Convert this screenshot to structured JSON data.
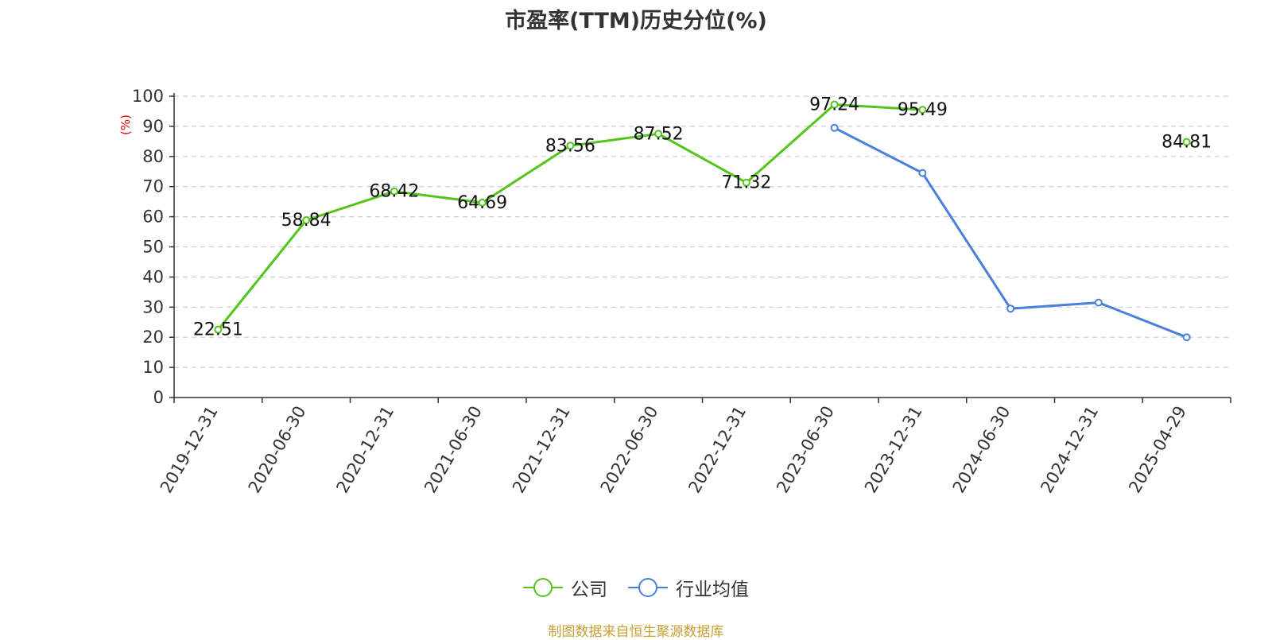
{
  "chart_data": {
    "type": "line",
    "title": "市盈率(TTM)历史分位(%)",
    "ylabel": "(%)",
    "xlabel": "",
    "ylim": [
      0,
      100
    ],
    "yticks": [
      0,
      10,
      20,
      30,
      40,
      50,
      60,
      70,
      80,
      90,
      100
    ],
    "categories": [
      "2019-12-31",
      "2020-06-30",
      "2020-12-31",
      "2021-06-30",
      "2021-12-31",
      "2022-06-30",
      "2022-12-31",
      "2023-06-30",
      "2023-12-31",
      "2024-06-30",
      "2024-12-31",
      "2025-04-29"
    ],
    "series": [
      {
        "name": "公司",
        "color": "#52c41a",
        "show_labels": true,
        "values": [
          22.51,
          58.84,
          68.42,
          64.69,
          83.56,
          87.52,
          71.32,
          97.24,
          95.49,
          null,
          null,
          84.81
        ]
      },
      {
        "name": "行业均值",
        "color": "#4a7fdc",
        "show_labels": false,
        "values": [
          null,
          null,
          null,
          null,
          null,
          null,
          null,
          89.5,
          74.5,
          29.5,
          31.5,
          20.0
        ]
      }
    ],
    "grid": true,
    "legend_position": "bottom-center",
    "source": "制图数据来自恒生聚源数据库"
  }
}
